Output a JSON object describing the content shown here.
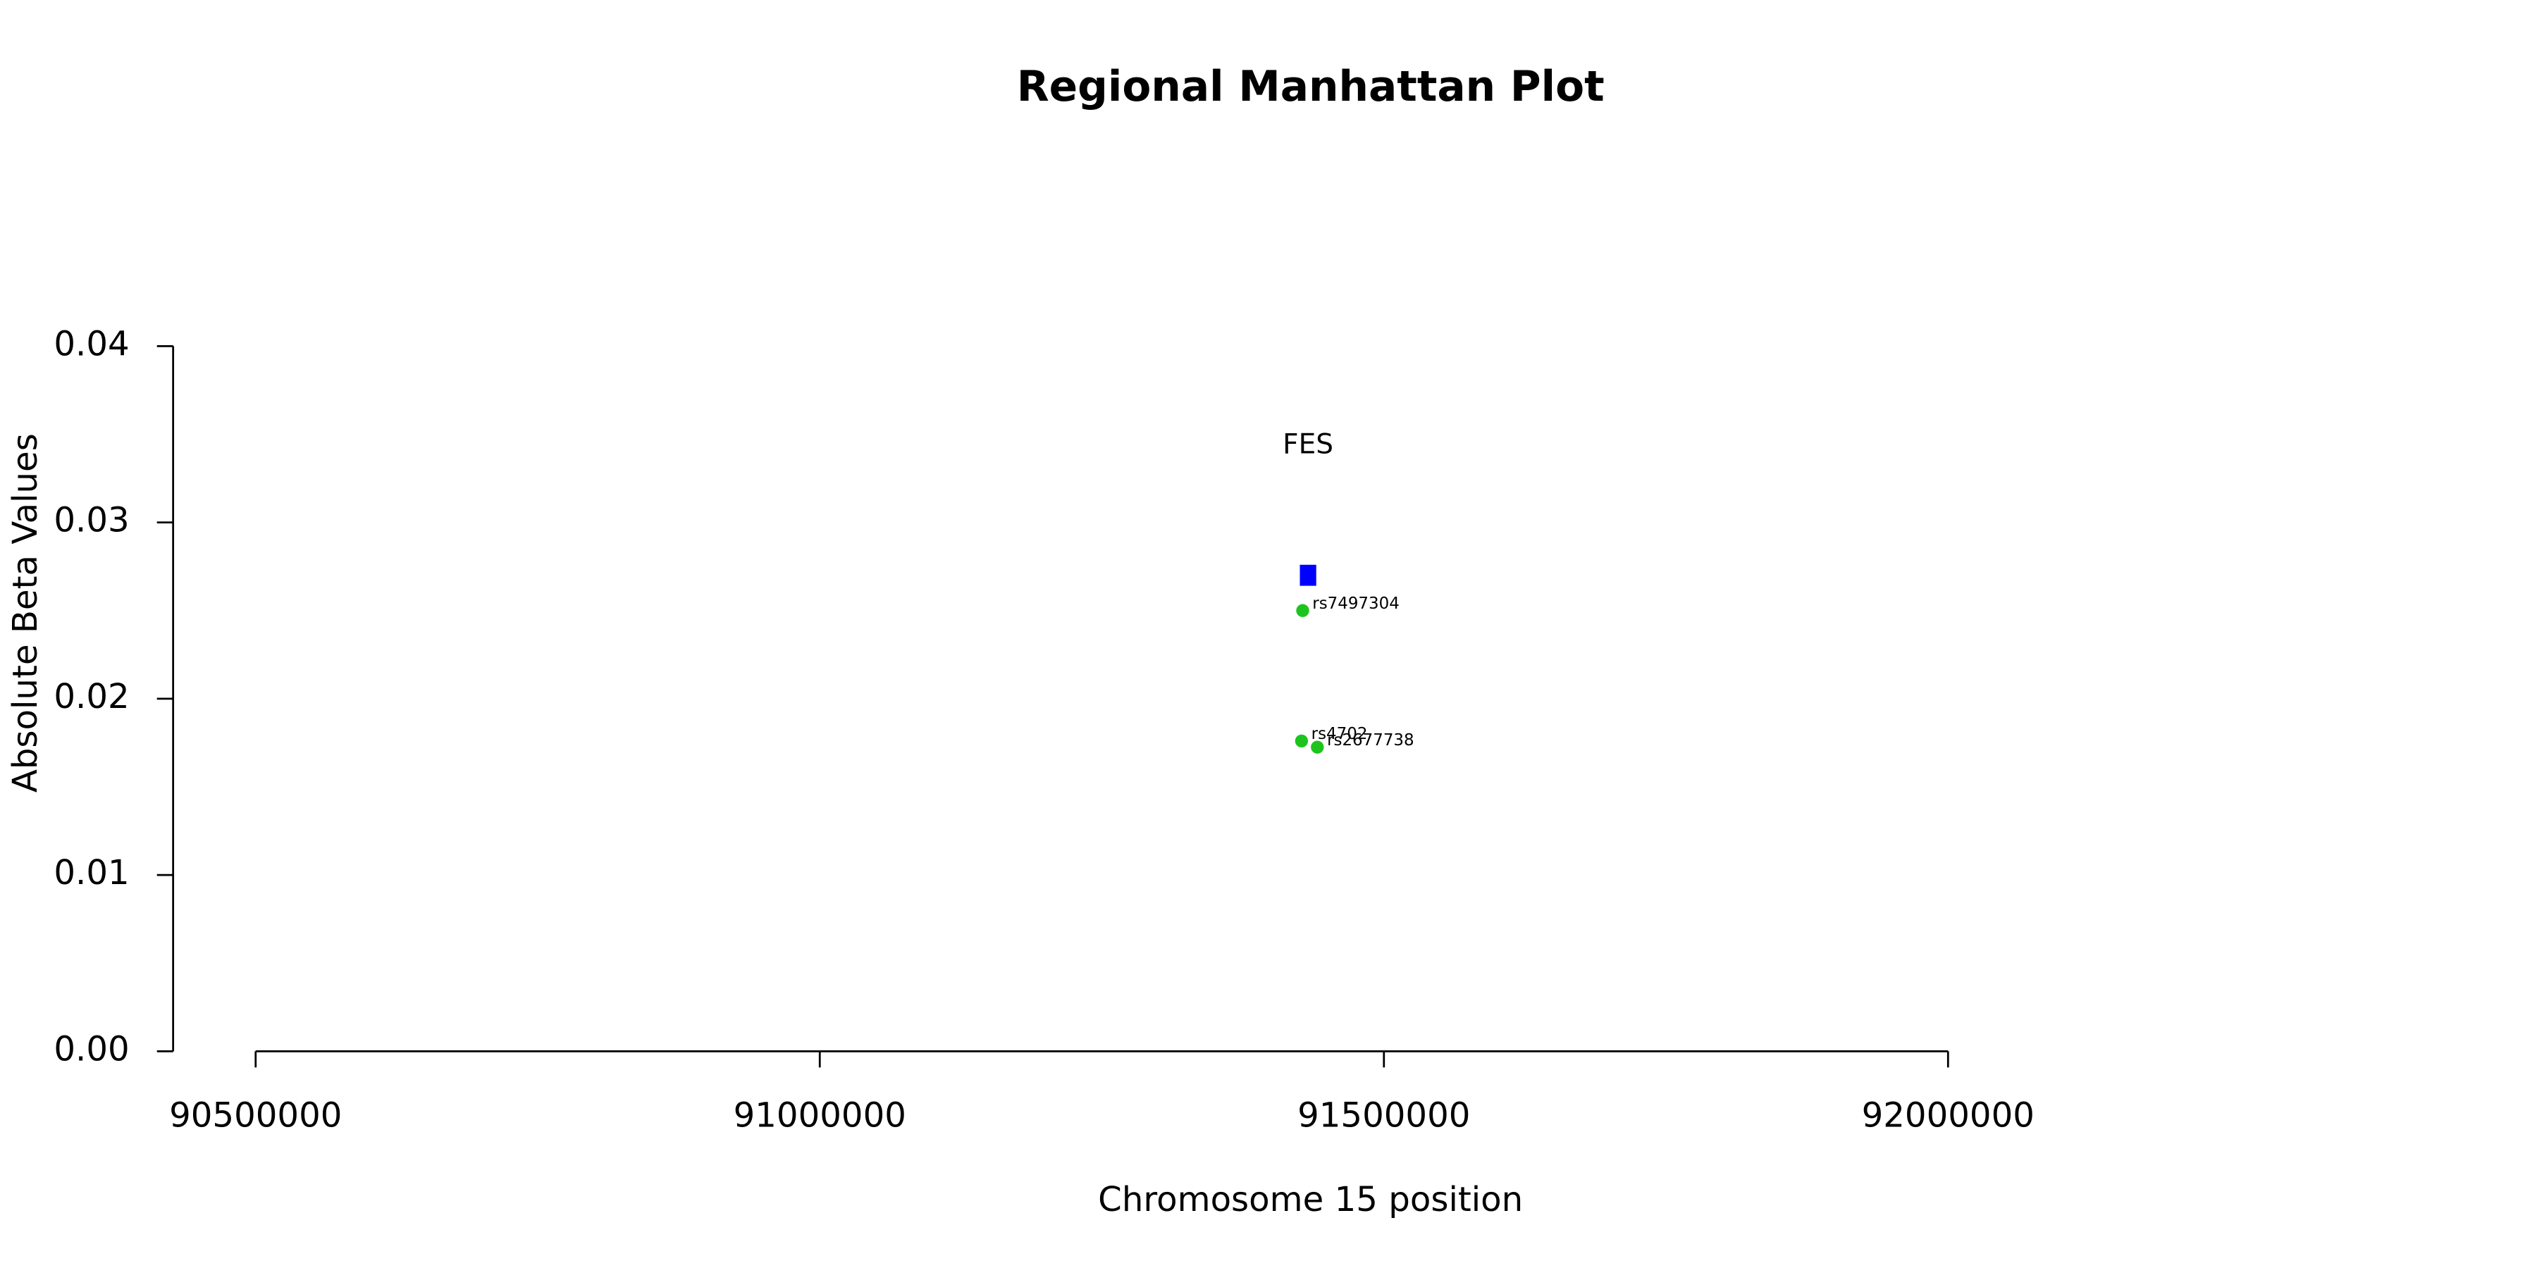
{
  "chart_data": {
    "type": "scatter",
    "title": "Regional Manhattan Plot",
    "x_label": "Chromosome 15 position",
    "y_label": "Absolute Beta Values",
    "x": [
      91428000,
      91427000,
      91441000
    ],
    "values": [
      0.025,
      0.0176,
      0.01725
    ],
    "point_labels": [
      "rs7497304",
      "rs4702",
      "rs2677738"
    ],
    "color": "#1ec41e",
    "genes": [
      {
        "label": "FES",
        "start": 91425500,
        "end": 91440000,
        "value": 0.027,
        "color": "#0000ff"
      }
    ],
    "xlim": [
      90500000,
      92000000
    ],
    "xticks": [
      90500000,
      91000000,
      91500000,
      92000000
    ],
    "ylim": [
      0,
      0.04
    ],
    "yticks": [
      {
        "value": 0,
        "label": "0.00"
      },
      0.01,
      0.02,
      0.03,
      0.04
    ]
  }
}
